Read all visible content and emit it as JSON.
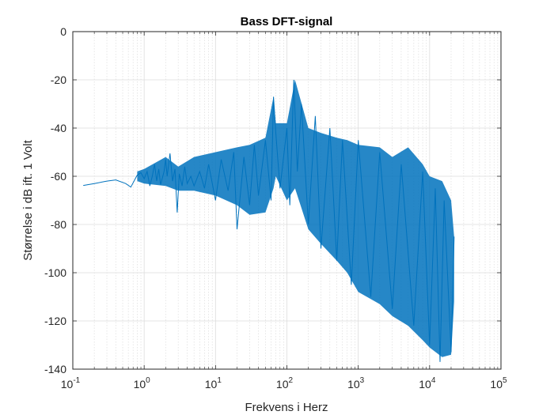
{
  "chart_data": {
    "type": "line",
    "title": "Bass DFT-signal",
    "xlabel": "Frekvens i Herz",
    "ylabel": "Størrelse i dB ift. 1 Volt",
    "xscale": "log",
    "xlim": [
      0.1,
      100000
    ],
    "ylim": [
      -140,
      0
    ],
    "grid": true,
    "minor_grid_x": true,
    "x_ticks": [
      {
        "base": "10",
        "exp": "-1"
      },
      {
        "base": "10",
        "exp": "0"
      },
      {
        "base": "10",
        "exp": "1"
      },
      {
        "base": "10",
        "exp": "2"
      },
      {
        "base": "10",
        "exp": "3"
      },
      {
        "base": "10",
        "exp": "4"
      },
      {
        "base": "10",
        "exp": "5"
      }
    ],
    "y_ticks": [
      "0",
      "-20",
      "-40",
      "-60",
      "-80",
      "-100",
      "-120",
      "-140"
    ],
    "colors": {
      "line": "#0072BD",
      "grid": "#dcdcdc",
      "axis": "#262626"
    },
    "series": [
      {
        "name": "",
        "points": [
          [
            0.14,
            -63.8
          ],
          [
            0.2,
            -63.0
          ],
          [
            0.3,
            -62.0
          ],
          [
            0.4,
            -61.5
          ],
          [
            0.55,
            -63.0
          ],
          [
            0.65,
            -64.5
          ],
          [
            0.8,
            -59.5
          ],
          [
            0.9,
            -58.5
          ],
          [
            1.0,
            -61.0
          ],
          [
            1.1,
            -58.0
          ],
          [
            1.2,
            -64.0
          ],
          [
            1.3,
            -60.0
          ],
          [
            1.4,
            -55.0
          ],
          [
            1.5,
            -62.0
          ],
          [
            1.6,
            -57.0
          ],
          [
            1.7,
            -63.5
          ],
          [
            1.9,
            -58.0
          ],
          [
            2.0,
            -53.0
          ],
          [
            2.1,
            -60.0
          ],
          [
            2.3,
            -50.5
          ],
          [
            2.5,
            -62.0
          ],
          [
            2.7,
            -57.0
          ],
          [
            2.9,
            -75.0
          ],
          [
            3.1,
            -59.0
          ],
          [
            3.4,
            -64.0
          ],
          [
            3.7,
            -56.0
          ],
          [
            4.0,
            -63.0
          ],
          [
            4.5,
            -60.0
          ],
          [
            5.0,
            -64.0
          ],
          [
            6.0,
            -58.0
          ],
          [
            7.0,
            -65.0
          ],
          [
            8.0,
            -55.0
          ],
          [
            10.0,
            -70.0
          ],
          [
            12.0,
            -53.0
          ],
          [
            15.0,
            -66.0
          ],
          [
            18.0,
            -50.0
          ],
          [
            20.0,
            -82.0
          ],
          [
            25.0,
            -52.0
          ],
          [
            30.0,
            -72.0
          ],
          [
            35.0,
            -47.0
          ],
          [
            40.0,
            -68.0
          ],
          [
            50.0,
            -45.0
          ],
          [
            60.0,
            -70.0
          ],
          [
            65.0,
            -27.0
          ],
          [
            70.0,
            -42.0
          ],
          [
            80.0,
            -65.0
          ],
          [
            100.0,
            -40.0
          ],
          [
            110.0,
            -72.0
          ],
          [
            125.0,
            -20.0
          ],
          [
            140.0,
            -58.0
          ],
          [
            160.0,
            -30.0
          ],
          [
            200.0,
            -80.0
          ],
          [
            250.0,
            -35.0
          ],
          [
            300.0,
            -90.0
          ],
          [
            400.0,
            -40.0
          ],
          [
            500.0,
            -95.0
          ],
          [
            600.0,
            -45.0
          ],
          [
            800.0,
            -105.0
          ],
          [
            1000.0,
            -45.0
          ],
          [
            1500.0,
            -110.0
          ],
          [
            2000.0,
            -50.0
          ],
          [
            3000.0,
            -115.0
          ],
          [
            4000.0,
            -55.0
          ],
          [
            6000.0,
            -122.0
          ],
          [
            8000.0,
            -58.0
          ],
          [
            10000.0,
            -130.0
          ],
          [
            12000.0,
            -65.0
          ],
          [
            14000.0,
            -137.0
          ],
          [
            16000.0,
            -70.0
          ],
          [
            20000.0,
            -133.0
          ],
          [
            22050.0,
            -85.0
          ]
        ],
        "band": {
          "x": [
            0.8,
            1,
            2,
            3,
            5,
            10,
            20,
            30,
            50,
            65,
            70,
            100,
            130,
            200,
            300,
            500,
            700,
            1000,
            2000,
            3000,
            5000,
            8000,
            10000,
            15000,
            20000,
            22050
          ],
          "upper": [
            -58,
            -57,
            -52,
            -56,
            -52,
            -50,
            -48,
            -47,
            -44,
            -27,
            -38,
            -38,
            -20,
            -40,
            -42,
            -44,
            -45,
            -47,
            -48,
            -52,
            -48,
            -55,
            -60,
            -62,
            -70,
            -85
          ],
          "lower": [
            -62,
            -63,
            -64,
            -66,
            -66,
            -68,
            -72,
            -76,
            -75,
            -65,
            -60,
            -70,
            -65,
            -82,
            -88,
            -95,
            -100,
            -108,
            -113,
            -118,
            -122,
            -128,
            -131,
            -135,
            -134,
            -112
          ]
        }
      }
    ]
  }
}
